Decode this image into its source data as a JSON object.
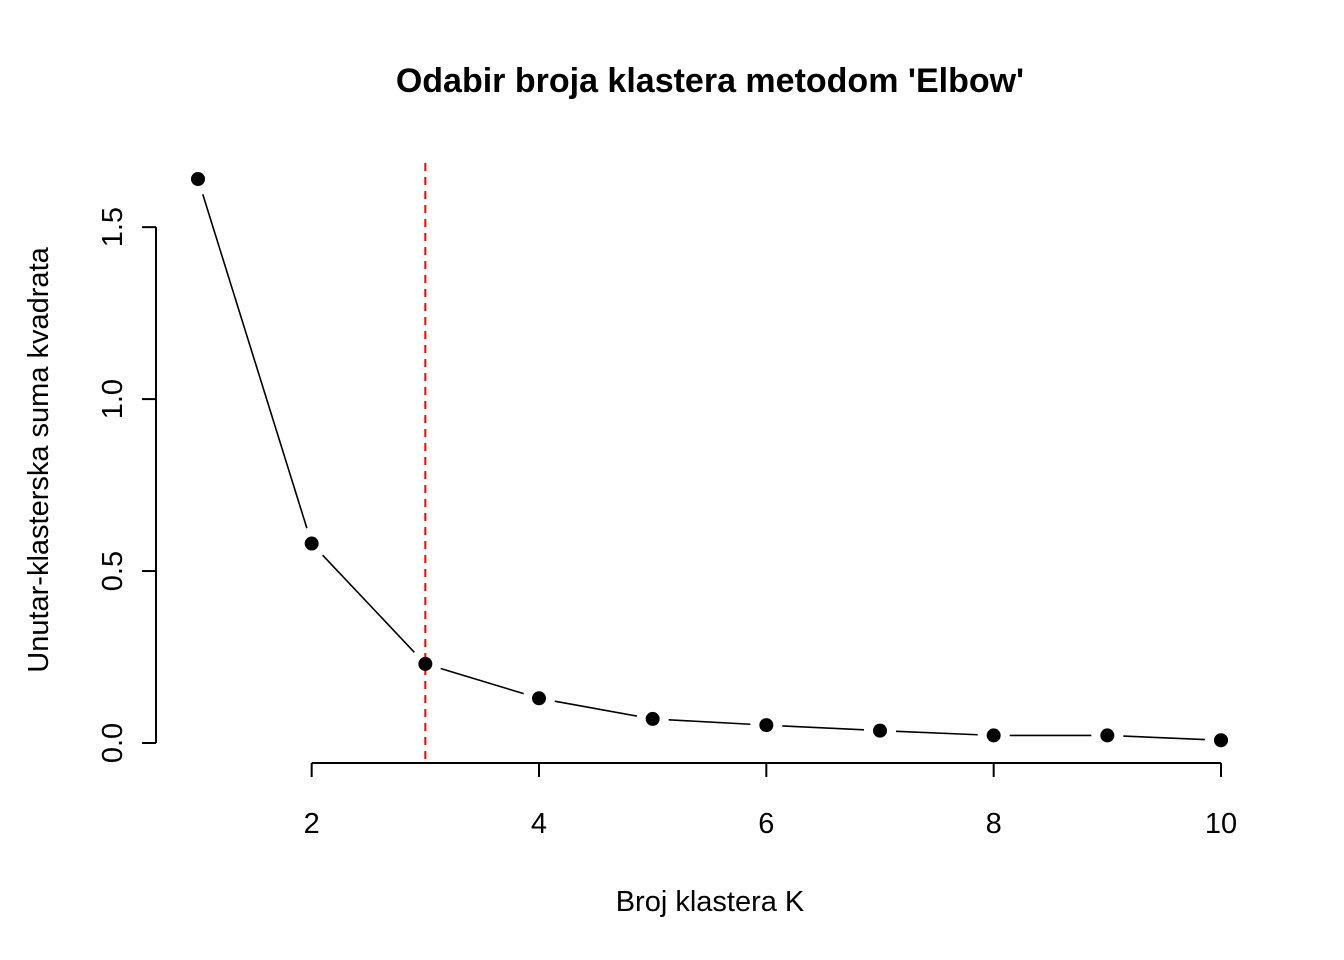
{
  "chart_data": {
    "type": "line",
    "title": "Odabir broja klastera metodom 'Elbow'",
    "xlabel": "Broj klastera K",
    "ylabel": "Unutar-klasterska suma kvadrata",
    "x": [
      1,
      2,
      3,
      4,
      5,
      6,
      7,
      8,
      9,
      10
    ],
    "y": [
      1.64,
      0.58,
      0.23,
      0.13,
      0.07,
      0.052,
      0.036,
      0.022,
      0.022,
      0.008
    ],
    "xlim": [
      1,
      10
    ],
    "ylim": [
      0,
      1.64
    ],
    "x_ticks": [
      2,
      4,
      6,
      8,
      10
    ],
    "x_tick_labels": [
      "2",
      "4",
      "6",
      "8",
      "10"
    ],
    "y_ticks": [
      0,
      0.5,
      1,
      1.5
    ],
    "y_tick_labels": [
      "0.0",
      "0.5",
      "1.0",
      "1.5"
    ],
    "reference_line": {
      "orientation": "vertical",
      "x": 3,
      "color": "#ff0000",
      "style": "dashed"
    },
    "series_color": "#000000",
    "marker": "filled-circle",
    "grid": false
  }
}
